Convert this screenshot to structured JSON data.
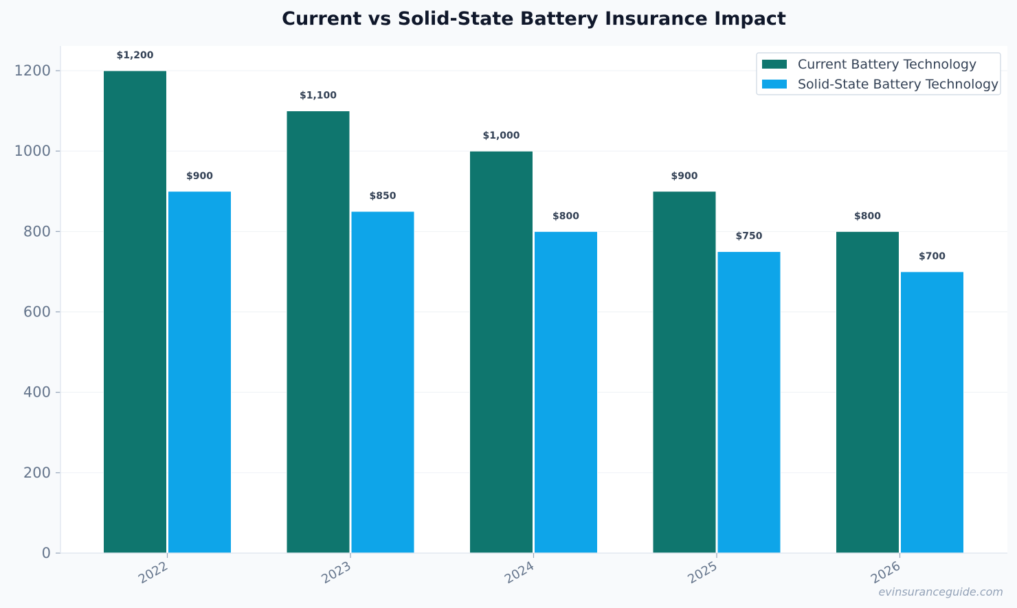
{
  "chart_data": {
    "type": "bar",
    "title": "Current vs Solid-State Battery Insurance Impact",
    "xlabel": "",
    "ylabel": "",
    "categories": [
      "2022",
      "2023",
      "2024",
      "2025",
      "2026"
    ],
    "series": [
      {
        "name": "Current Battery Technology",
        "color": "#0f766e",
        "values": [
          1200,
          1100,
          1000,
          900,
          800
        ],
        "labels": [
          "$1,200",
          "$1,100",
          "$1,000",
          "$900",
          "$800"
        ]
      },
      {
        "name": "Solid-State Battery Technology",
        "color": "#0ea5e9",
        "values": [
          900,
          850,
          800,
          750,
          700
        ],
        "labels": [
          "$900",
          "$850",
          "$800",
          "$750",
          "$700"
        ]
      }
    ],
    "ylim": [
      0,
      1260
    ],
    "yticks": [
      0,
      200,
      400,
      600,
      800,
      1000,
      1200
    ],
    "grid": true,
    "legend_position": "top-right"
  },
  "watermark": "evinsuranceguide.com"
}
